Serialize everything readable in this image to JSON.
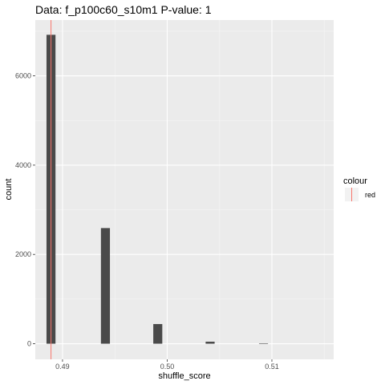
{
  "chart_data": {
    "type": "bar",
    "title": "Data: f_p100c60_s10m1     P-value: 1",
    "xlabel": "shuffle_score",
    "ylabel": "count",
    "xlim": [
      0.4874,
      0.5159
    ],
    "ylim": [
      -350,
      7250
    ],
    "x_ticks": [
      0.49,
      0.5,
      0.51
    ],
    "x_tick_labels": [
      "0.49",
      "0.50",
      "0.51"
    ],
    "y_ticks": [
      0,
      2000,
      4000,
      6000
    ],
    "y_tick_labels": [
      "0",
      "2000",
      "4000",
      "6000"
    ],
    "bin_width": 0.00086,
    "bins": [
      {
        "x": 0.4889,
        "count": 6920
      },
      {
        "x": 0.4941,
        "count": 2590
      },
      {
        "x": 0.4991,
        "count": 440
      },
      {
        "x": 0.5041,
        "count": 45
      },
      {
        "x": 0.5092,
        "count": 6
      }
    ],
    "bar_color": "#4a4a4a",
    "vline": {
      "x": 0.4889,
      "color": "#f8766d"
    },
    "grid": true,
    "panel_background": "#ebebeb",
    "legend": {
      "title": "colour",
      "placement": "right",
      "entries": [
        {
          "label": "red",
          "color": "#f8766d"
        }
      ]
    }
  }
}
